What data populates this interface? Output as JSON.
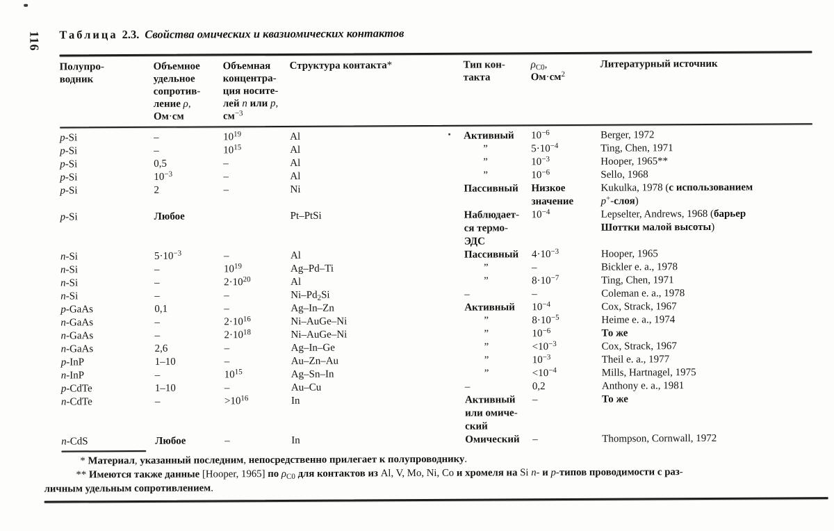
{
  "page": {
    "number": "116",
    "title": {
      "label": "Таблица",
      "number": "2.3.",
      "subtitle": "Свойства омических и квазиомических контактов"
    }
  },
  "table": {
    "columns": [
      "Полупро-\nводник",
      "Объемное\nудельное\nсопротив-\nление {i}ρ{/i},\nОм·см",
      "Объемная\nконцентра-\nция носите-\nлей {i}n{/i} или {i}p{/i},\nсм^{−3}",
      "Структура контакта*",
      "Тип кон-\nтакта",
      "{i}ρ{/i}_{C0},\nОм·см^{2}",
      "Литературный источник"
    ],
    "ditto_mark": "”",
    "rows": [
      [
        "{i}p{/i}-Si",
        "–",
        "10^{19}",
        "Al",
        "Активный",
        "10^{−6}",
        "Berger, 1972"
      ],
      [
        "{i}p{/i}-Si",
        "–",
        "10^{15}",
        "Al",
        "”",
        "5·10^{−4}",
        "Ting, Chen, 1971"
      ],
      [
        "{i}p{/i}-Si",
        "0,5",
        "–",
        "Al",
        "”",
        "10^{−3}",
        "Hooper, 1965**"
      ],
      [
        "{i}p{/i}-Si",
        "10^{−3}",
        "–",
        "Al",
        "”",
        "10^{−6}",
        "Sello, 1968"
      ],
      [
        "{i}p{/i}-Si",
        "2",
        "–",
        "Ni",
        "Пассивный",
        "Низкое\nзначение",
        "Kukulka, 1978 (с использованием\n{i}p{/i}^{+}-слоя)"
      ],
      [
        "{i}p{/i}-Si",
        "Любое",
        "",
        "Pt–PtSi",
        "Наблюдает-\nся термо-\nЭДС",
        "10^{−4}",
        "Lepselter, Andrews, 1968 (барьер\nШоттки малой высоты)"
      ],
      [
        "{i}n{/i}-Si",
        "5·10^{−3}",
        "–",
        "Al",
        "Пассивный",
        "4·10^{−3}",
        "Hooper, 1965"
      ],
      [
        "{i}n{/i}-Si",
        "–",
        "10^{19}",
        "Ag–Pd–Ti",
        "”",
        "–",
        "Bickler e. a., 1978"
      ],
      [
        "{i}n{/i}-Si",
        "–",
        "2·10^{20}",
        "Al",
        "”",
        "8·10^{−7}",
        "Ting, Chen, 1971"
      ],
      [
        "{i}n{/i}-Si",
        "–",
        "–",
        "Ni–Pd_{2}Si",
        "–",
        "–",
        "Coleman e. a., 1978"
      ],
      [
        "{i}p{/i}-GaAs",
        "0,1",
        "–",
        "Ag–In–Zn",
        "Активный",
        "10^{−4}",
        "Cox, Strack, 1967"
      ],
      [
        "{i}n{/i}-GaAs",
        "–",
        "2·10^{16}",
        "Ni–AuGe–Ni",
        "”",
        "8·10^{−5}",
        "Heime e. a., 1974"
      ],
      [
        "{i}n{/i}-GaAs",
        "–",
        "2·10^{18}",
        "Ni–AuGe–Ni",
        "”",
        "10^{−6}",
        "То же"
      ],
      [
        "{i}n{/i}-GaAs",
        "2,6",
        "–",
        "Ag–In–Ge",
        "”",
        "<10^{−3}",
        "Cox, Strack, 1967"
      ],
      [
        "{i}p{/i}-InP",
        "1–10",
        "–",
        "Au–Zn–Au",
        "”",
        "10^{−3}",
        "Theil e. a., 1977"
      ],
      [
        "{i}n{/i}-InP",
        "–",
        "10^{15}",
        "Ag–Sn–In",
        "”",
        "<10^{−4}",
        "Mills, Hartnagel, 1975"
      ],
      [
        "{i}p{/i}-CdTe",
        "1–10",
        "–",
        "Au–Cu",
        "–",
        "0,2",
        "Anthony e. a., 1981"
      ],
      [
        "{i}n{/i}-CdTe",
        "–",
        ">10^{16}",
        "In",
        "Активный\nили омиче-\nский",
        "–",
        "То же"
      ],
      [
        "{i}n{/i}-CdS",
        "Любое",
        "–",
        "In",
        "Омический",
        "–",
        "Thompson, Cornwall, 1972"
      ]
    ]
  },
  "footnotes": [
    "* Материал, указанный последним, непосредственно прилегает к полупроводнику.",
    "** Имеются также данные [Hooper, 1965] по {i}ρ{/i}_{C0} для контактов из Al, V, Mo, Ni, Co и хромеля на Si {i}n{/i}- и {i}p{/i}-типов проводимости с раз-\nличным удельным сопротивлением."
  ]
}
